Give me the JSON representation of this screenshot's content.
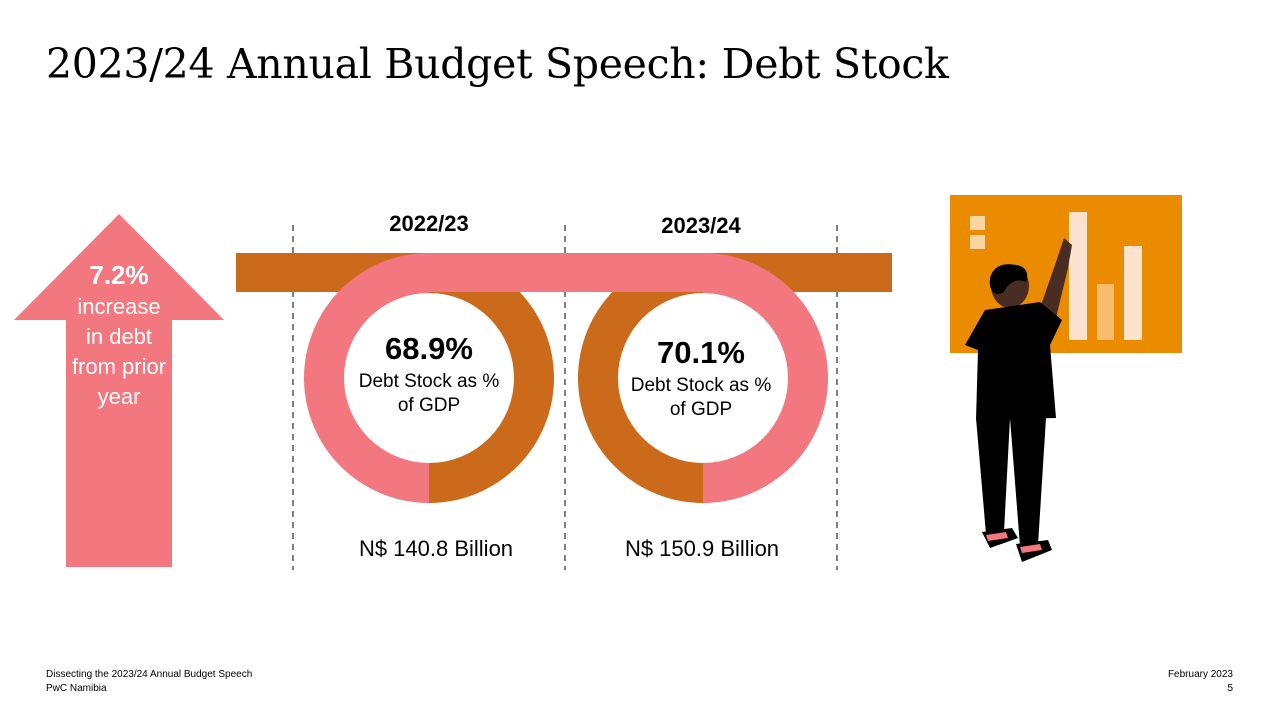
{
  "title": "2023/24 Annual Budget Speech: Debt Stock",
  "arrow": {
    "percent": "7.2%",
    "description": "increase in debt from prior year"
  },
  "periods": [
    {
      "year": "2022/23",
      "percent": "68.9%",
      "description": "Debt Stock as % of GDP",
      "amount": "N$ 140.8 Billion"
    },
    {
      "year": "2023/24",
      "percent": "70.1%",
      "description": "Debt Stock as % of GDP",
      "amount": "N$ 150.9 Billion"
    }
  ],
  "footer": {
    "left_line1": "Dissecting the 2023/24 Annual Budget Speech",
    "left_line2": "PwC Namibia",
    "right_line1": "February 2023",
    "right_line2": "5"
  },
  "colors": {
    "pink": "#f2777f",
    "orange": "#cc6a1c",
    "board": "#eb8c00",
    "figure": "#000000"
  },
  "icons": {
    "arrow": "up-arrow-icon",
    "illustration": "person-presenting-chart-illustration"
  }
}
